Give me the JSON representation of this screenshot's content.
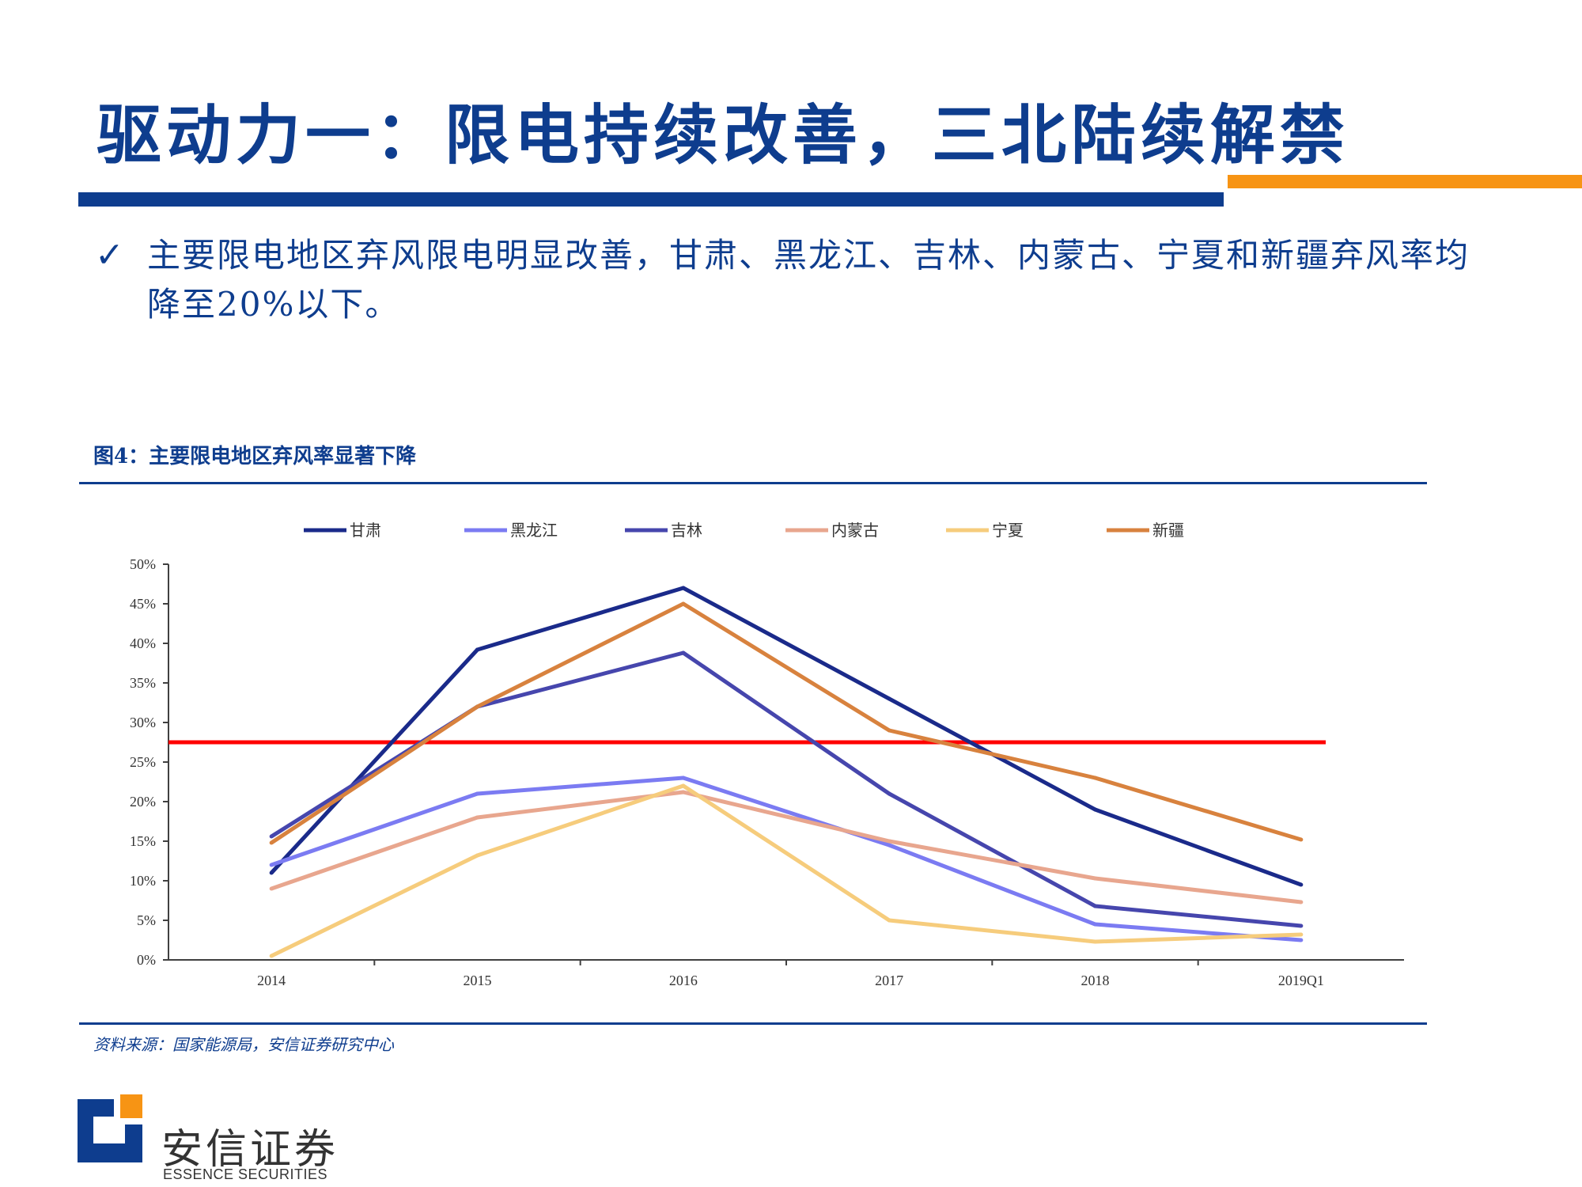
{
  "slide": {
    "title": "驱动力一：限电持续改善，三北陆续解禁",
    "bullet_check": "✓",
    "bullet": "主要限电地区弃风限电明显改善，甘肃、黑龙江、吉林、内蒙古、宁夏和新疆弃风率均降至20%以下。"
  },
  "figure": {
    "title": "图4：主要限电地区弃风率显著下降",
    "source": "资料来源：国家能源局，安信证券研究中心"
  },
  "brand": {
    "name_cn": "安信证券",
    "name_en": "ESSENCE SECURITIES",
    "logo_icon": "essence-logo-icon",
    "color_primary": "#0e3d8e",
    "color_accent": "#f79414"
  },
  "chart_data": {
    "type": "line",
    "categories": [
      "2014",
      "2015",
      "2016",
      "2017",
      "2018",
      "2019Q1"
    ],
    "ylim": [
      0,
      50
    ],
    "yticks": [
      "0%",
      "5%",
      "10%",
      "15%",
      "20%",
      "25%",
      "30%",
      "35%",
      "40%",
      "45%",
      "50%"
    ],
    "legend_position": "top",
    "grid": false,
    "reference_line": {
      "value": 27.5,
      "color": "#ff0000"
    },
    "series": [
      {
        "name": "甘肃",
        "color": "#1a2a8a",
        "values": [
          11,
          39.2,
          47,
          33,
          19,
          9.5
        ]
      },
      {
        "name": "黑龙江",
        "color": "#7b7bf2",
        "values": [
          12,
          21,
          23,
          14.5,
          4.5,
          2.5
        ]
      },
      {
        "name": "吉林",
        "color": "#4646ad",
        "values": [
          15.6,
          32,
          38.8,
          21,
          6.8,
          4.3
        ]
      },
      {
        "name": "内蒙古",
        "color": "#e8a68e",
        "values": [
          9,
          18,
          21.2,
          15,
          10.3,
          7.3
        ]
      },
      {
        "name": "宁夏",
        "color": "#f6cc7c",
        "values": [
          0.5,
          13.2,
          22,
          5,
          2.3,
          3.2
        ]
      },
      {
        "name": "新疆",
        "color": "#d8823e",
        "values": [
          14.8,
          32,
          45,
          29,
          23,
          15.2
        ]
      }
    ]
  }
}
